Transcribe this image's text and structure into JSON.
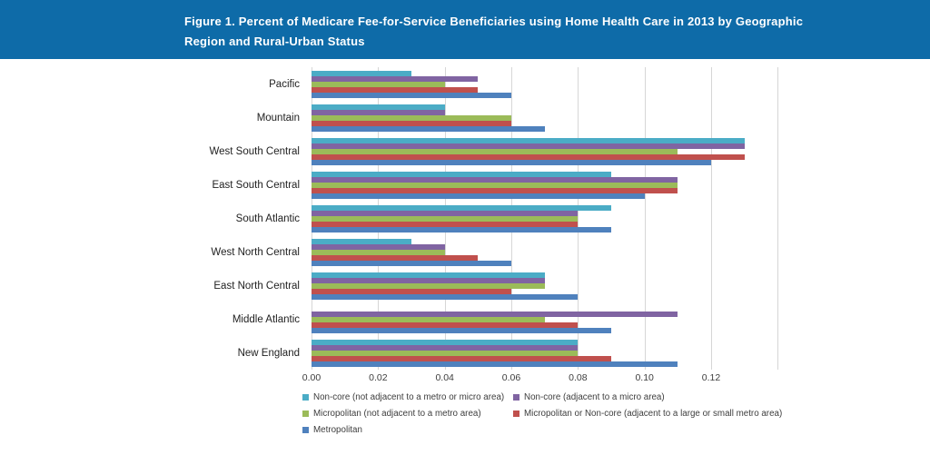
{
  "header": {
    "title_line1": "Figure 1. Percent of Medicare Fee-for-Service Beneficiaries using Home Health Care in 2013 by Geographic",
    "title_line2": "Region and Rural-Urban Status",
    "background_color": "#0E6BA8",
    "text_color": "#FFFFFF"
  },
  "chart_data": {
    "type": "bar",
    "orientation": "horizontal",
    "title": "Figure 1. Percent of Medicare Fee-for-Service Beneficiaries using Home Health Care in 2013 by Geographic Region and Rural-Urban Status",
    "categories": [
      "Pacific",
      "Mountain",
      "West South Central",
      "East South Central",
      "South Atlantic",
      "West North Central",
      "East North Central",
      "Middle Atlantic",
      "New England"
    ],
    "series": [
      {
        "name": "Non-core (not adjacent to a metro or micro area)",
        "color": "#4BACC6",
        "values": [
          0.03,
          0.04,
          0.13,
          0.09,
          0.09,
          0.03,
          0.07,
          null,
          0.08
        ]
      },
      {
        "name": "Non-core (adjacent to a micro area)",
        "color": "#8064A2",
        "values": [
          0.05,
          0.04,
          0.13,
          0.11,
          0.08,
          0.04,
          0.07,
          0.11,
          0.08
        ]
      },
      {
        "name": "Micropolitan (not adjacent to a metro area)",
        "color": "#9BBB59",
        "values": [
          0.04,
          0.06,
          0.11,
          0.11,
          0.08,
          0.04,
          0.07,
          0.07,
          0.08
        ]
      },
      {
        "name": "Micropolitan or Non-core (adjacent to a large or small metro area)",
        "color": "#C0504D",
        "values": [
          0.05,
          0.06,
          0.13,
          0.11,
          0.08,
          0.05,
          0.06,
          0.08,
          0.09
        ]
      },
      {
        "name": "Metropolitan",
        "color": "#4F81BD",
        "values": [
          0.06,
          0.07,
          0.12,
          0.1,
          0.09,
          0.06,
          0.08,
          0.09,
          0.11
        ]
      }
    ],
    "xlim": [
      0,
      0.142
    ],
    "tick_labels": [
      "0.00",
      "0.02",
      "0.04",
      "0.06",
      "0.08",
      "0.10",
      "0.12"
    ],
    "tick_values": [
      0.0,
      0.02,
      0.04,
      0.06,
      0.08,
      0.1,
      0.12
    ],
    "gridline_values": [
      0.0,
      0.02,
      0.04,
      0.06,
      0.08,
      0.1,
      0.12,
      0.14
    ],
    "grid": true,
    "legend_position": "bottom",
    "gridline_color": "#D6D6D6"
  }
}
